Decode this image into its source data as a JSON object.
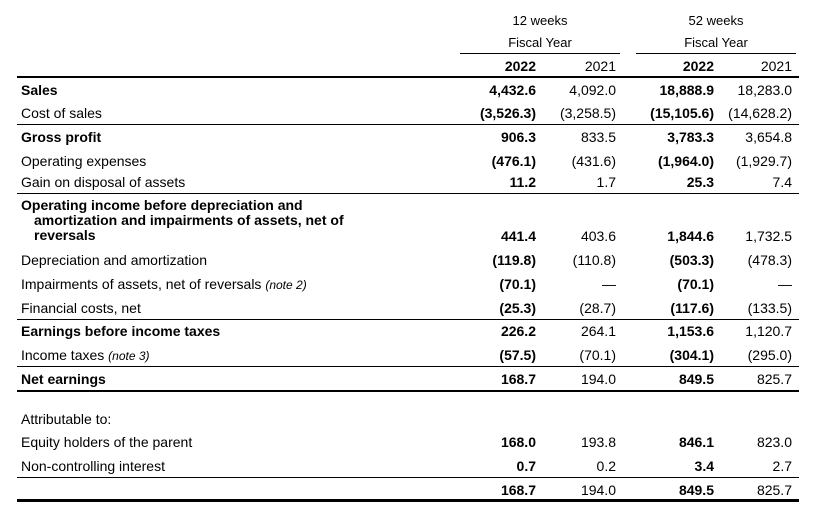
{
  "header": {
    "period12": "12 weeks",
    "period52": "52 weeks",
    "fiscal_year": "Fiscal Year",
    "year_current": "2022",
    "year_prior": "2021"
  },
  "rows": {
    "sales": {
      "label": "Sales",
      "c1": "4,432.6",
      "c2": "4,092.0",
      "c3": "18,888.9",
      "c4": "18,283.0"
    },
    "cost_of_sales": {
      "label": "Cost of sales",
      "c1": "(3,526.3)",
      "c2": "(3,258.5)",
      "c3": "(15,105.6)",
      "c4": "(14,628.2)"
    },
    "gross_profit": {
      "label": "Gross profit",
      "c1": "906.3",
      "c2": "833.5",
      "c3": "3,783.3",
      "c4": "3,654.8"
    },
    "operating_expenses": {
      "label": "Operating expenses",
      "c1": "(476.1)",
      "c2": "(431.6)",
      "c3": "(1,964.0)",
      "c4": "(1,929.7)"
    },
    "gain_disposal": {
      "label": "Gain on disposal of assets",
      "c1": "11.2",
      "c2": "1.7",
      "c3": "25.3",
      "c4": "7.4"
    },
    "operating_income": {
      "line1": "Operating income before depreciation and",
      "line2": "amortization and impairments of assets, net of",
      "line3": "reversals",
      "c1": "441.4",
      "c2": "403.6",
      "c3": "1,844.6",
      "c4": "1,732.5"
    },
    "depreciation": {
      "label": "Depreciation and amortization",
      "c1": "(119.8)",
      "c2": "(110.8)",
      "c3": "(503.3)",
      "c4": "(478.3)"
    },
    "impairments": {
      "label": "Impairments of assets, net of reversals",
      "note": "(note 2)",
      "c1": "(70.1)",
      "c2": "—",
      "c3": "(70.1)",
      "c4": "—"
    },
    "financial_costs": {
      "label": "Financial costs, net",
      "c1": "(25.3)",
      "c2": "(28.7)",
      "c3": "(117.6)",
      "c4": "(133.5)"
    },
    "ebt": {
      "label": "Earnings before income taxes",
      "c1": "226.2",
      "c2": "264.1",
      "c3": "1,153.6",
      "c4": "1,120.7"
    },
    "income_taxes": {
      "label": "Income taxes",
      "note": "(note 3)",
      "c1": "(57.5)",
      "c2": "(70.1)",
      "c3": "(304.1)",
      "c4": "(295.0)"
    },
    "net_earnings": {
      "label": "Net earnings",
      "c1": "168.7",
      "c2": "194.0",
      "c3": "849.5",
      "c4": "825.7"
    },
    "attributable": {
      "label": "Attributable to:"
    },
    "equity_holders": {
      "label": "Equity holders of the parent",
      "c1": "168.0",
      "c2": "193.8",
      "c3": "846.1",
      "c4": "823.0"
    },
    "nci": {
      "label": "Non-controlling interest",
      "c1": "0.7",
      "c2": "0.2",
      "c3": "3.4",
      "c4": "2.7"
    },
    "total": {
      "c1": "168.7",
      "c2": "194.0",
      "c3": "849.5",
      "c4": "825.7"
    }
  }
}
